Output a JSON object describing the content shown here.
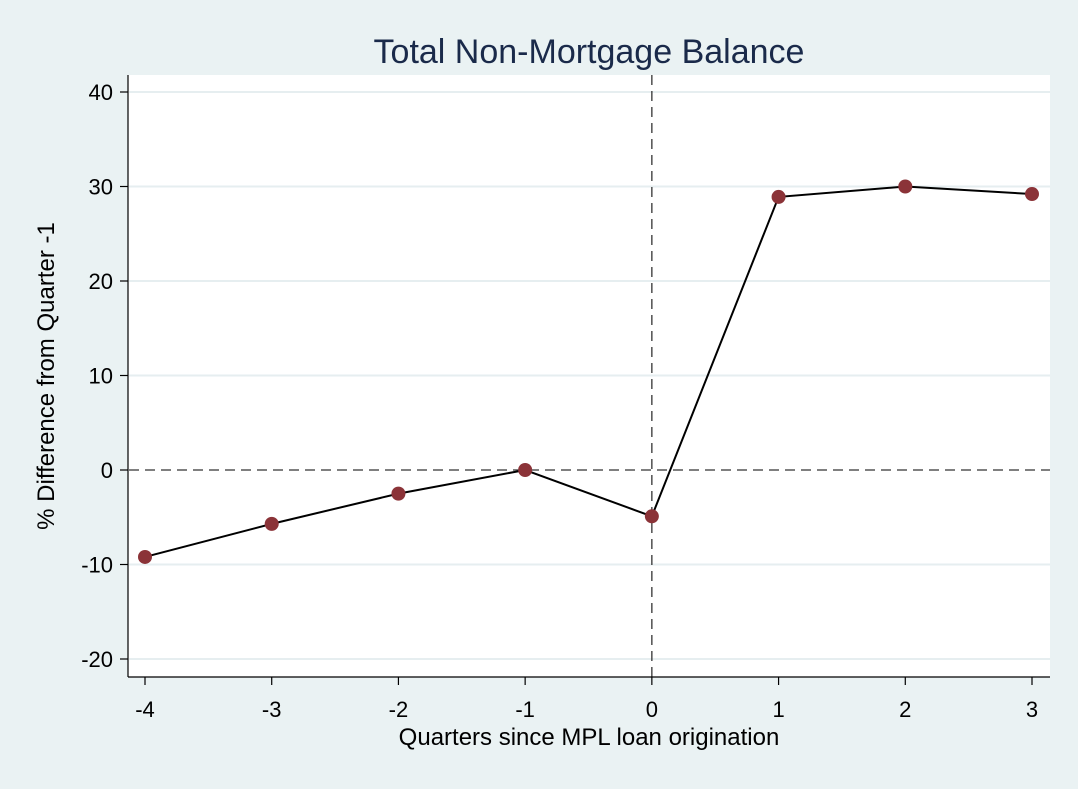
{
  "chart_data": {
    "type": "line",
    "title": "Total Non-Mortgage Balance",
    "xlabel": "Quarters since MPL loan origination",
    "ylabel": "% Difference from Quarter -1",
    "x": [
      -4,
      -3,
      -2,
      -1,
      0,
      1,
      2,
      3
    ],
    "series": [
      {
        "values": [
          -9.2,
          -5.7,
          -2.5,
          0.0,
          -4.9,
          28.9,
          30.0,
          29.2
        ]
      }
    ],
    "xlim": [
      -4,
      3
    ],
    "ylim": [
      -20,
      40
    ],
    "xticks": [
      -4,
      -3,
      -2,
      -1,
      0,
      1,
      2,
      3
    ],
    "yticks": [
      -20,
      -10,
      0,
      10,
      20,
      30,
      40
    ],
    "xtick_labels": [
      "-4",
      "-3",
      "-2",
      "-1",
      "0",
      "1",
      "2",
      "3"
    ],
    "ytick_labels": [
      "-20",
      "-10",
      "0",
      "10",
      "20",
      "30",
      "40"
    ],
    "grid": "horizontal",
    "reference_lines": {
      "x": 0,
      "y": 0,
      "style": "dashed"
    },
    "colors": {
      "background": "#eaf2f3",
      "plot_background": "#ffffff",
      "line": "#000000",
      "marker": "#8b3338",
      "title": "#1a2a4a",
      "grid": "#e6eef0"
    }
  }
}
